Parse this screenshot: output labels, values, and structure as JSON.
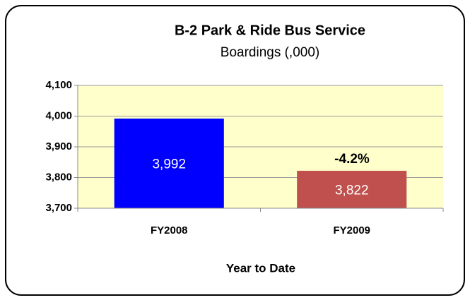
{
  "chart_data": {
    "type": "bar",
    "title": "B-2 Park & Ride Bus Service",
    "subtitle": "Boardings (,000)",
    "x_label": "Year to Date",
    "annotation": "-4.2%",
    "categories": [
      "FY2008",
      "FY2009"
    ],
    "values": [
      3992,
      3822
    ],
    "value_labels": [
      "3,992",
      "3,822"
    ],
    "colors": [
      "#0000ff",
      "#c0504d"
    ],
    "ylim": [
      3700,
      4100
    ],
    "yticks": [
      {
        "value": 3700,
        "label": "3,700"
      },
      {
        "value": 3800,
        "label": "3,800"
      },
      {
        "value": 3900,
        "label": "3,900"
      },
      {
        "value": 4000,
        "label": "4,000"
      },
      {
        "value": 4100,
        "label": "4,100"
      }
    ],
    "grid": true
  }
}
